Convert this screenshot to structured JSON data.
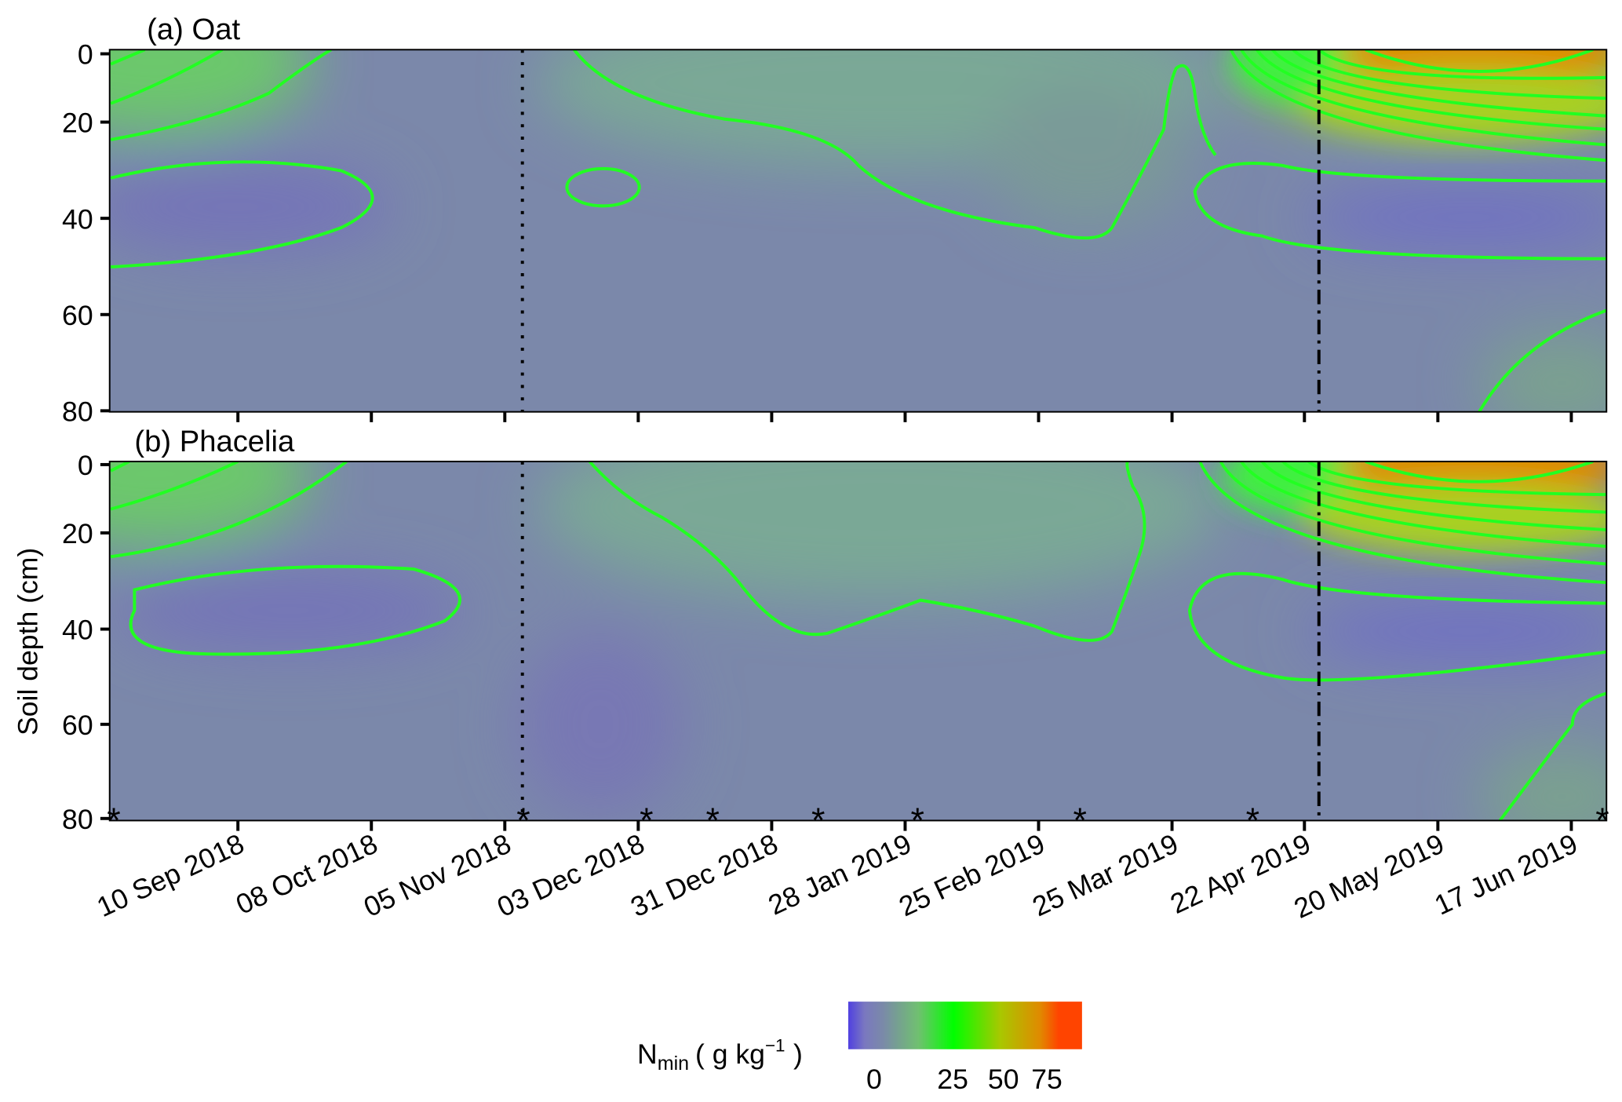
{
  "chart_data": {
    "type": "heatmap",
    "panels": [
      {
        "title": "(a) Oat",
        "crop": "Oat"
      },
      {
        "title": "(b) Phacelia",
        "crop": "Phacelia"
      }
    ],
    "ylabel": "Soil depth (cm)",
    "yticks": [
      "0",
      "20",
      "40",
      "60",
      "80"
    ],
    "ylim": [
      80,
      0
    ],
    "xlim": [
      "14 Aug 2018",
      "24 Jun 2019"
    ],
    "xticks": [
      "10 Sep 2018",
      "08 Oct 2018",
      "05 Nov 2018",
      "03 Dec 2018",
      "31 Dec 2018",
      "28 Jan 2019",
      "25 Feb 2019",
      "25 Mar 2019",
      "22 Apr 2019",
      "20 May 2019",
      "17 Jun 2019"
    ],
    "vertical_lines": [
      {
        "style": "dotted",
        "date": "09 Nov 2018"
      },
      {
        "style": "dashdot",
        "date": "25 Apr 2019"
      }
    ],
    "sampling_dates": [
      "15 Aug 2018",
      "09 Nov 2018",
      "05 Dec 2018",
      "19 Dec 2018",
      "10 Jan 2019",
      "31 Jan 2019",
      "06 Mar 2019",
      "12 Apr 2019",
      "24 Jun 2019"
    ],
    "sampling_marker": "*",
    "colorbar": {
      "label_main": "N",
      "label_sub": "min",
      "label_unit": "( g kg",
      "label_exp": "−1",
      "label_close": ")",
      "ticks": [
        "0",
        "25",
        "50",
        "75"
      ],
      "colors": [
        "#5040e0",
        "#7a78b8",
        "#7a90a0",
        "#66d866",
        "#00ff00",
        "#a8c800",
        "#e08a00",
        "#ff4400"
      ]
    },
    "contour_color": "#22ff22"
  }
}
